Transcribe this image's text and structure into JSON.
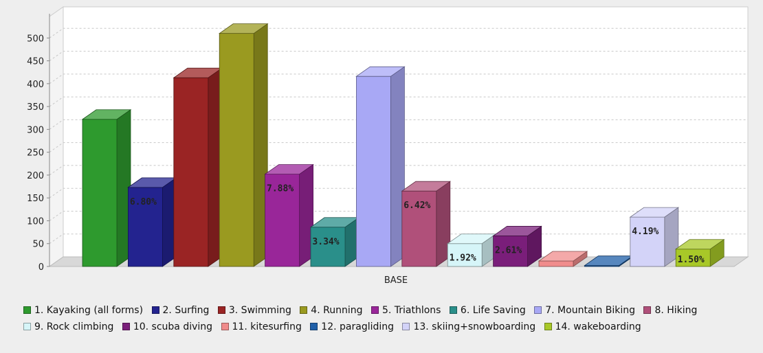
{
  "chart_data": {
    "type": "bar",
    "title": "",
    "xlabel": "",
    "ylabel": "",
    "categories": [
      "BASE"
    ],
    "ylim": [
      0,
      520
    ],
    "yticks": [
      0,
      50,
      100,
      150,
      200,
      250,
      300,
      350,
      400,
      450,
      500
    ],
    "grid": true,
    "legend_position": "bottom",
    "series": [
      {
        "name": "1. Kayaking (all forms)",
        "values": [
          322
        ],
        "color": "#2e9a2e",
        "label": ""
      },
      {
        "name": "2. Surfing",
        "values": [
          173
        ],
        "color": "#23238f",
        "label": "6.80%"
      },
      {
        "name": "3. Swimming",
        "values": [
          413
        ],
        "color": "#9a2424",
        "label": ""
      },
      {
        "name": "4. Running",
        "values": [
          510
        ],
        "color": "#9a9a20",
        "label": ""
      },
      {
        "name": "5. Triathlons",
        "values": [
          202
        ],
        "color": "#992699",
        "label": "7.88%"
      },
      {
        "name": "6. Life Saving",
        "values": [
          86
        ],
        "color": "#2a8f8a",
        "label": "3.34%"
      },
      {
        "name": "7. Mountain Biking",
        "values": [
          416
        ],
        "color": "#a8a8f5",
        "label": ""
      },
      {
        "name": "8. Hiking",
        "values": [
          165
        ],
        "color": "#b0507a",
        "label": "6.42%"
      },
      {
        "name": "9. Rock climbing",
        "values": [
          50
        ],
        "color": "#d6f5f8",
        "label": "1.92%"
      },
      {
        "name": "10. scuba diving",
        "values": [
          67
        ],
        "color": "#7a1e7a",
        "label": "2.61%"
      },
      {
        "name": "11. kitesurfing",
        "values": [
          12
        ],
        "color": "#f08c8c",
        "label": ""
      },
      {
        "name": "12. paragliding",
        "values": [
          2
        ],
        "color": "#1f5fa8",
        "label": ""
      },
      {
        "name": "13. skiing+snowboarding",
        "values": [
          108
        ],
        "color": "#d3d3f8",
        "label": "4.19%"
      },
      {
        "name": "14. wakeboarding",
        "values": [
          38
        ],
        "color": "#a8c828",
        "label": "1.50%"
      }
    ]
  }
}
